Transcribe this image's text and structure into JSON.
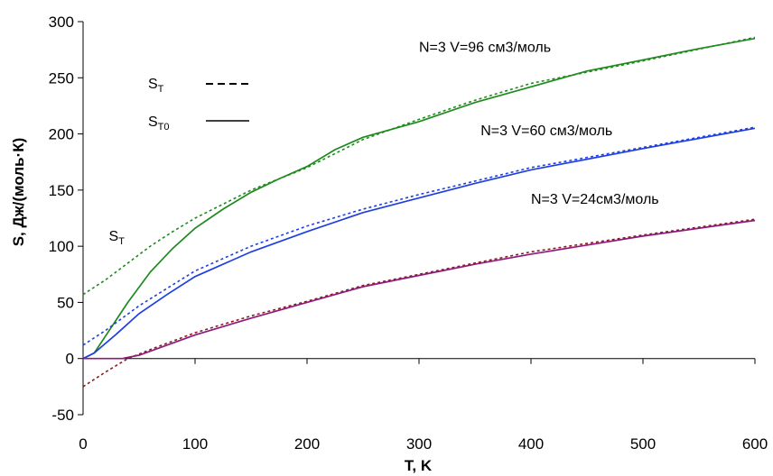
{
  "chart_data": {
    "type": "line",
    "xlabel": "T, K",
    "ylabel": "S, Дж/(моль·К)",
    "xlim": [
      0,
      600
    ],
    "ylim": [
      -50,
      300
    ],
    "x_ticks": [
      "0",
      "100",
      "200",
      "300",
      "400",
      "500",
      "600"
    ],
    "y_ticks": [
      "-50",
      "0",
      "50",
      "100",
      "150",
      "200",
      "250",
      "300"
    ],
    "grid": false,
    "legend": {
      "placement": "top-left",
      "entries": [
        {
          "label_main": "S",
          "label_sub": "T",
          "style": "dashed"
        },
        {
          "label_main": "S",
          "label_sub": "T0",
          "style": "solid"
        }
      ]
    },
    "annotations": [
      {
        "text": "N=3   V=96 см3/моль",
        "x": 300,
        "y": 273
      },
      {
        "text": "N=3   V=60 см3/моль",
        "x": 355,
        "y": 199
      },
      {
        "text": "N=3   V=24см3/моль",
        "x": 400,
        "y": 138
      },
      {
        "main": "S",
        "sub": "T",
        "x": 23,
        "y": 105
      }
    ],
    "series": [
      {
        "group": "V=96",
        "kind": "S_T",
        "color": "#1e8a1e",
        "style": "dotted",
        "points": [
          [
            0,
            57
          ],
          [
            20,
            70
          ],
          [
            40,
            85
          ],
          [
            60,
            100
          ],
          [
            80,
            113
          ],
          [
            100,
            125
          ],
          [
            150,
            150
          ],
          [
            200,
            170
          ],
          [
            250,
            195
          ],
          [
            300,
            213
          ],
          [
            350,
            230
          ],
          [
            400,
            245
          ],
          [
            500,
            265
          ],
          [
            600,
            286
          ]
        ]
      },
      {
        "group": "V=96",
        "kind": "S_T0",
        "color": "#1e8a1e",
        "style": "solid",
        "points": [
          [
            0,
            0
          ],
          [
            10,
            5
          ],
          [
            20,
            20
          ],
          [
            40,
            50
          ],
          [
            60,
            77
          ],
          [
            80,
            98
          ],
          [
            100,
            116
          ],
          [
            125,
            133
          ],
          [
            150,
            148
          ],
          [
            175,
            160
          ],
          [
            200,
            171
          ],
          [
            225,
            186
          ],
          [
            250,
            197
          ],
          [
            300,
            211
          ],
          [
            350,
            228
          ],
          [
            400,
            242
          ],
          [
            450,
            256
          ],
          [
            500,
            266
          ],
          [
            550,
            276
          ],
          [
            600,
            285
          ]
        ]
      },
      {
        "group": "V=60",
        "kind": "S_T",
        "color": "#1f3fe0",
        "style": "dotted",
        "points": [
          [
            0,
            12
          ],
          [
            20,
            25
          ],
          [
            50,
            47
          ],
          [
            100,
            78
          ],
          [
            150,
            100
          ],
          [
            200,
            118
          ],
          [
            250,
            133
          ],
          [
            300,
            146
          ],
          [
            350,
            158
          ],
          [
            400,
            170
          ],
          [
            500,
            188
          ],
          [
            600,
            206
          ]
        ]
      },
      {
        "group": "V=60",
        "kind": "S_T0",
        "color": "#1f3fe0",
        "style": "solid",
        "points": [
          [
            0,
            0
          ],
          [
            10,
            5
          ],
          [
            30,
            22
          ],
          [
            50,
            40
          ],
          [
            75,
            57
          ],
          [
            100,
            73
          ],
          [
            150,
            95
          ],
          [
            200,
            113
          ],
          [
            250,
            130
          ],
          [
            300,
            143
          ],
          [
            350,
            156
          ],
          [
            400,
            168
          ],
          [
            500,
            187
          ],
          [
            600,
            205
          ]
        ]
      },
      {
        "group": "V=24",
        "kind": "S_T",
        "color": "#8b1a1a",
        "style": "dotted",
        "points": [
          [
            0,
            -25
          ],
          [
            20,
            -12
          ],
          [
            40,
            0
          ],
          [
            60,
            8
          ],
          [
            100,
            23
          ],
          [
            150,
            38
          ],
          [
            200,
            51
          ],
          [
            250,
            65
          ],
          [
            300,
            75
          ],
          [
            350,
            85
          ],
          [
            400,
            95
          ],
          [
            500,
            110
          ],
          [
            600,
            124
          ]
        ]
      },
      {
        "group": "V=24",
        "kind": "S_T0",
        "color": "#8e1a7e",
        "style": "solid",
        "points": [
          [
            0,
            0
          ],
          [
            35,
            0
          ],
          [
            50,
            3
          ],
          [
            100,
            21
          ],
          [
            150,
            36
          ],
          [
            200,
            50
          ],
          [
            250,
            64
          ],
          [
            300,
            74
          ],
          [
            350,
            84
          ],
          [
            400,
            93
          ],
          [
            500,
            109
          ],
          [
            600,
            123
          ]
        ]
      }
    ]
  }
}
